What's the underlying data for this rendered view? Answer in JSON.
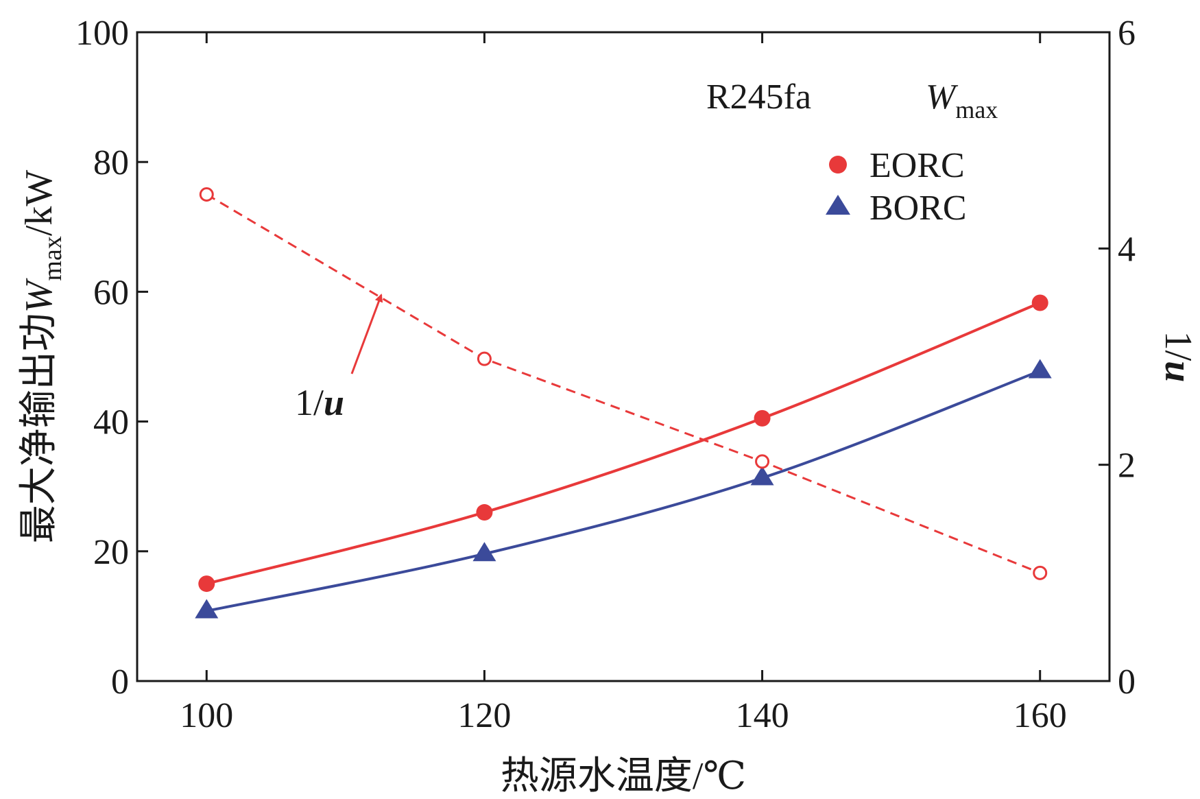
{
  "chart_data": {
    "type": "line",
    "x": [
      100,
      120,
      140,
      160
    ],
    "xlabel": "热源水温度/℃",
    "xlim": [
      95,
      165
    ],
    "x_ticks": [
      100,
      120,
      140,
      160
    ],
    "ylabel": {
      "main": "最大净输出功",
      "var": "W",
      "sub": "max",
      "unit": "/kW"
    },
    "ylim": [
      0,
      100
    ],
    "y_ticks": [
      0,
      20,
      40,
      60,
      80,
      100
    ],
    "y2label": {
      "num": "1/",
      "var": "u"
    },
    "y2lim": [
      0,
      6
    ],
    "y2_ticks": [
      0,
      2,
      4,
      6
    ],
    "header": {
      "fluid": "R245fa",
      "var": "W",
      "sub": "max"
    },
    "legend": [
      {
        "name": "EORC",
        "marker": "circle",
        "color": "#e8393a"
      },
      {
        "name": "BORC",
        "marker": "triangle",
        "color": "#3b4a9a"
      }
    ],
    "legend_position": "top-right",
    "series": [
      {
        "name": "EORC",
        "axis": "left",
        "marker": "circle-filled",
        "line": "solid",
        "color": "#e8393a",
        "values": [
          15,
          26,
          40.5,
          58.3
        ]
      },
      {
        "name": "BORC",
        "axis": "left",
        "marker": "triangle-filled",
        "line": "solid",
        "color": "#3b4a9a",
        "values": [
          10.8,
          19.6,
          31.3,
          47.8
        ]
      },
      {
        "name": "1/u",
        "axis": "right",
        "marker": "circle-open",
        "line": "dashed",
        "color": "#e8393a",
        "values": [
          4.5,
          2.98,
          2.03,
          1.0
        ]
      }
    ],
    "annotation": {
      "num": "1/",
      "var": "u",
      "arrow_target": "1/u series"
    }
  }
}
